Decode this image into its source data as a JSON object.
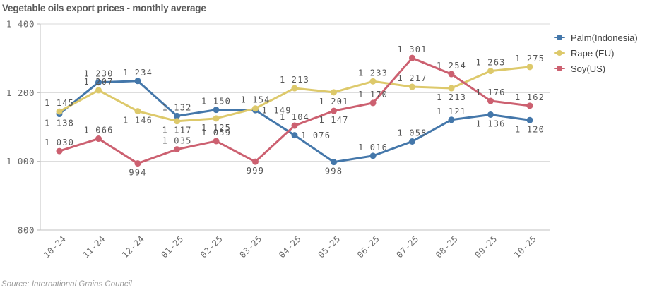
{
  "title": "Vegetable oils export prices - monthly average",
  "source_note": "Source: International Grains Council",
  "chart_data": {
    "type": "line",
    "title": "Vegetable oils export prices - monthly average",
    "xlabel": "",
    "ylabel": "",
    "categories": [
      "10-24",
      "11-24",
      "12-24",
      "01-25",
      "02-25",
      "03-25",
      "04-25",
      "05-25",
      "06-25",
      "07-25",
      "08-25",
      "09-25",
      "10-25"
    ],
    "series": [
      {
        "id": "palm",
        "name": "Palm(Indonesia)",
        "color": "#4477aa",
        "values": [
          1138,
          1230,
          1234,
          1132,
          1150,
          1149,
          1076,
          998,
          1016,
          1058,
          1121,
          1136,
          1120
        ],
        "labels": [
          "1 138",
          "1 230",
          "1 234",
          "1 132",
          "1 150",
          "1 149",
          "1 076",
          "998",
          "1 016",
          "1 058",
          "1 121",
          "1 136",
          "1 120"
        ],
        "label_pos": [
          "b",
          "a",
          "a",
          "a",
          "a",
          "r",
          "r",
          "b",
          "a",
          "a",
          "a",
          "b",
          "b"
        ]
      },
      {
        "id": "rape",
        "name": "Rape (EU)",
        "color": "#ddc96b",
        "values": [
          1145,
          1207,
          1146,
          1117,
          1125,
          1154,
          1213,
          1201,
          1233,
          1217,
          1213,
          1263,
          1275
        ],
        "labels": [
          "1 145",
          "1 207",
          "1 146",
          "1 117",
          "1 125",
          "1 154",
          "1 213",
          "1 201",
          "1 233",
          "1 217",
          "1 213",
          "1 263",
          "1 275"
        ],
        "label_pos": [
          "a",
          "a",
          "b",
          "b",
          "b",
          "a",
          "a",
          "b",
          "a",
          "a",
          "b",
          "a",
          "a"
        ]
      },
      {
        "id": "soy",
        "name": "Soy(US)",
        "color": "#cc6070",
        "values": [
          1030,
          1066,
          994,
          1035,
          1059,
          999,
          1104,
          1147,
          1170,
          1301,
          1254,
          1176,
          1162
        ],
        "labels": [
          "1 030",
          "1 066",
          "994",
          "1 035",
          "1 059",
          "999",
          "1 104",
          "1 147",
          "1 170",
          "1 301",
          "1 254",
          "1 176",
          "1 162"
        ],
        "label_pos": [
          "a",
          "a",
          "b",
          "a",
          "a",
          "b",
          "a",
          "b",
          "a",
          "a",
          "a",
          "a",
          "a"
        ]
      }
    ],
    "ylim": [
      800,
      1400
    ],
    "yticks": [
      1400,
      1200,
      1000,
      800
    ],
    "ytick_labels": [
      "1 400",
      "1 200",
      "1 000",
      "800"
    ],
    "grid": "horizontal-only",
    "legend_position": "top-right",
    "marker": "circle",
    "number_format": "space-thousands"
  }
}
